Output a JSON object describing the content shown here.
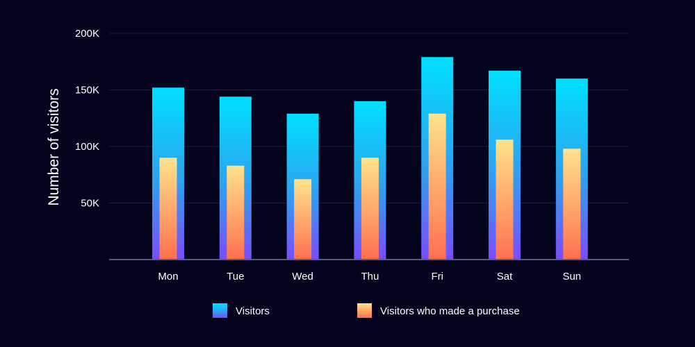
{
  "chart_data": {
    "type": "bar",
    "categories": [
      "Mon",
      "Tue",
      "Wed",
      "Thu",
      "Fri",
      "Sat",
      "Sun"
    ],
    "series": [
      {
        "name": "Visitors",
        "values": [
          152000,
          144000,
          129000,
          140000,
          179000,
          167000,
          160000
        ],
        "gradient": [
          "#00e0ff",
          "#7a4dff"
        ]
      },
      {
        "name": "Visitors who made a purchase",
        "values": [
          90000,
          83000,
          71000,
          90000,
          129000,
          106000,
          98000
        ],
        "gradient": [
          "#ffe38c",
          "#ff7050"
        ]
      }
    ],
    "ylabel": "Number of visitors",
    "xlabel": "",
    "ylim": [
      0,
      200000
    ],
    "yticks": [
      {
        "value": 50000,
        "label": "50K"
      },
      {
        "value": 100000,
        "label": "100K"
      },
      {
        "value": 150000,
        "label": "150K"
      },
      {
        "value": 200000,
        "label": "200K"
      }
    ],
    "grid": true,
    "legend_position": "bottom-center",
    "colors": {
      "background": "#03031d",
      "grid": "#1f1f45",
      "axis": "#5a5a7a",
      "text": "#ffffff"
    }
  }
}
